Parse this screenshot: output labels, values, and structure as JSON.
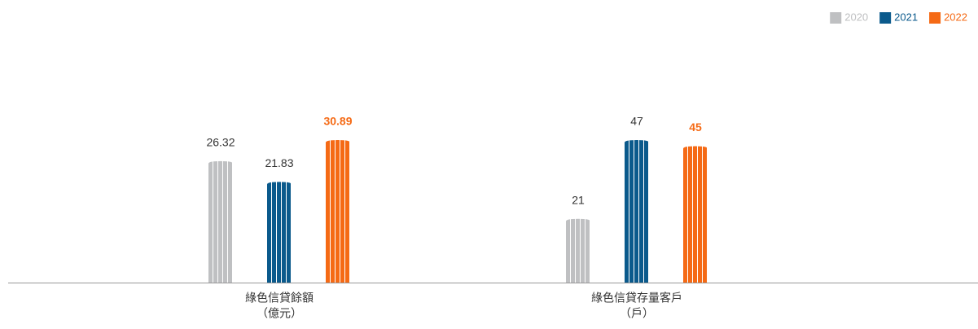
{
  "chart_data": {
    "type": "bar",
    "categories": [
      [
        "綠色信貸餘額",
        "（億元）"
      ],
      [
        "綠色信貸存量客戶",
        "（戶）"
      ]
    ],
    "series": [
      {
        "name": "2020",
        "color": "#bfc0c2",
        "values": [
          26.32,
          21
        ]
      },
      {
        "name": "2021",
        "color": "#0b5a8c",
        "values": [
          21.83,
          47
        ]
      },
      {
        "name": "2022",
        "color": "#f56a15",
        "values": [
          30.89,
          45
        ]
      }
    ],
    "legend": "top-right"
  }
}
